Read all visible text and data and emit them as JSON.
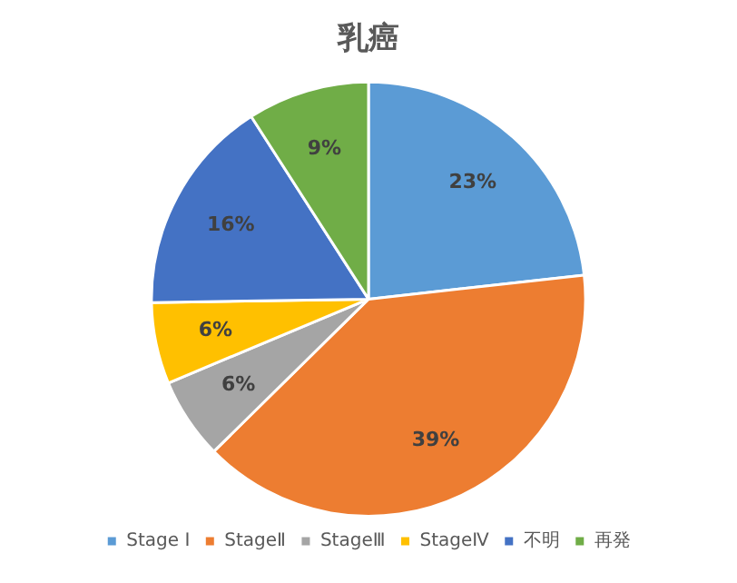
{
  "chart_data": {
    "type": "pie",
    "title": "乳癌",
    "categories": [
      "Stage Ⅰ",
      "StageⅡ",
      "StageⅢ",
      "StageⅣ",
      "不明",
      "再発"
    ],
    "values": [
      23,
      39,
      6,
      6,
      16,
      9
    ],
    "value_labels": [
      "23%",
      "39%",
      "6%",
      "6%",
      "16%",
      "9%"
    ],
    "colors": [
      "#5b9bd5",
      "#ed7d31",
      "#a5a5a5",
      "#ffc000",
      "#4472c4",
      "#70ad47"
    ],
    "legend": "bottom"
  }
}
